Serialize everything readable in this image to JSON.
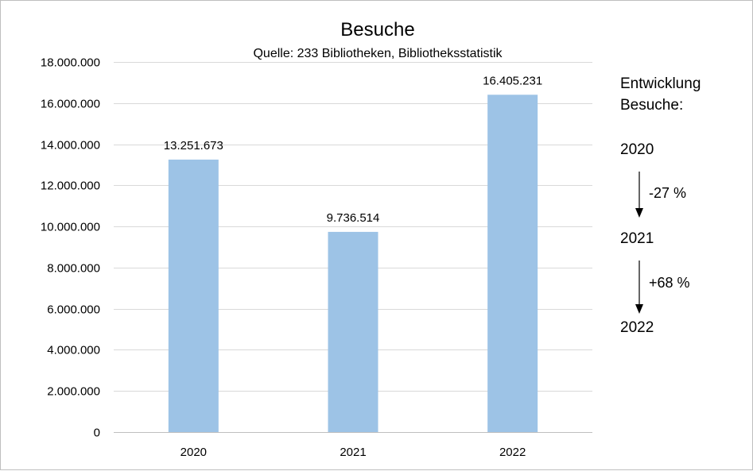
{
  "chart_data": {
    "type": "bar",
    "title": "Besuche",
    "subtitle": "Quelle: 233 Bibliotheken, Bibliotheksstatistik",
    "categories": [
      "2020",
      "2021",
      "2022"
    ],
    "values": [
      13251673,
      9736514,
      16405231
    ],
    "value_labels": [
      "13.251.673",
      "9.736.514",
      "16.405.231"
    ],
    "ylim": [
      0,
      18000000
    ],
    "yticks": [
      0,
      2000000,
      4000000,
      6000000,
      8000000,
      10000000,
      12000000,
      14000000,
      16000000,
      18000000
    ],
    "ytick_labels": [
      "0",
      "2.000.000",
      "4.000.000",
      "6.000.000",
      "8.000.000",
      "10.000.000",
      "12.000.000",
      "14.000.000",
      "16.000.000",
      "18.000.000"
    ],
    "xlabel": "",
    "ylabel": "",
    "grid": true,
    "legend": "none",
    "bar_color": "#9dc3e6",
    "grid_color": "#d9d9d9"
  },
  "annotation": {
    "heading_line1": "Entwicklung",
    "heading_line2": "Besuche:",
    "year_2020": "2020",
    "change_1": "-27 %",
    "year_2021": "2021",
    "change_2": "+68 %",
    "year_2022": "2022"
  }
}
